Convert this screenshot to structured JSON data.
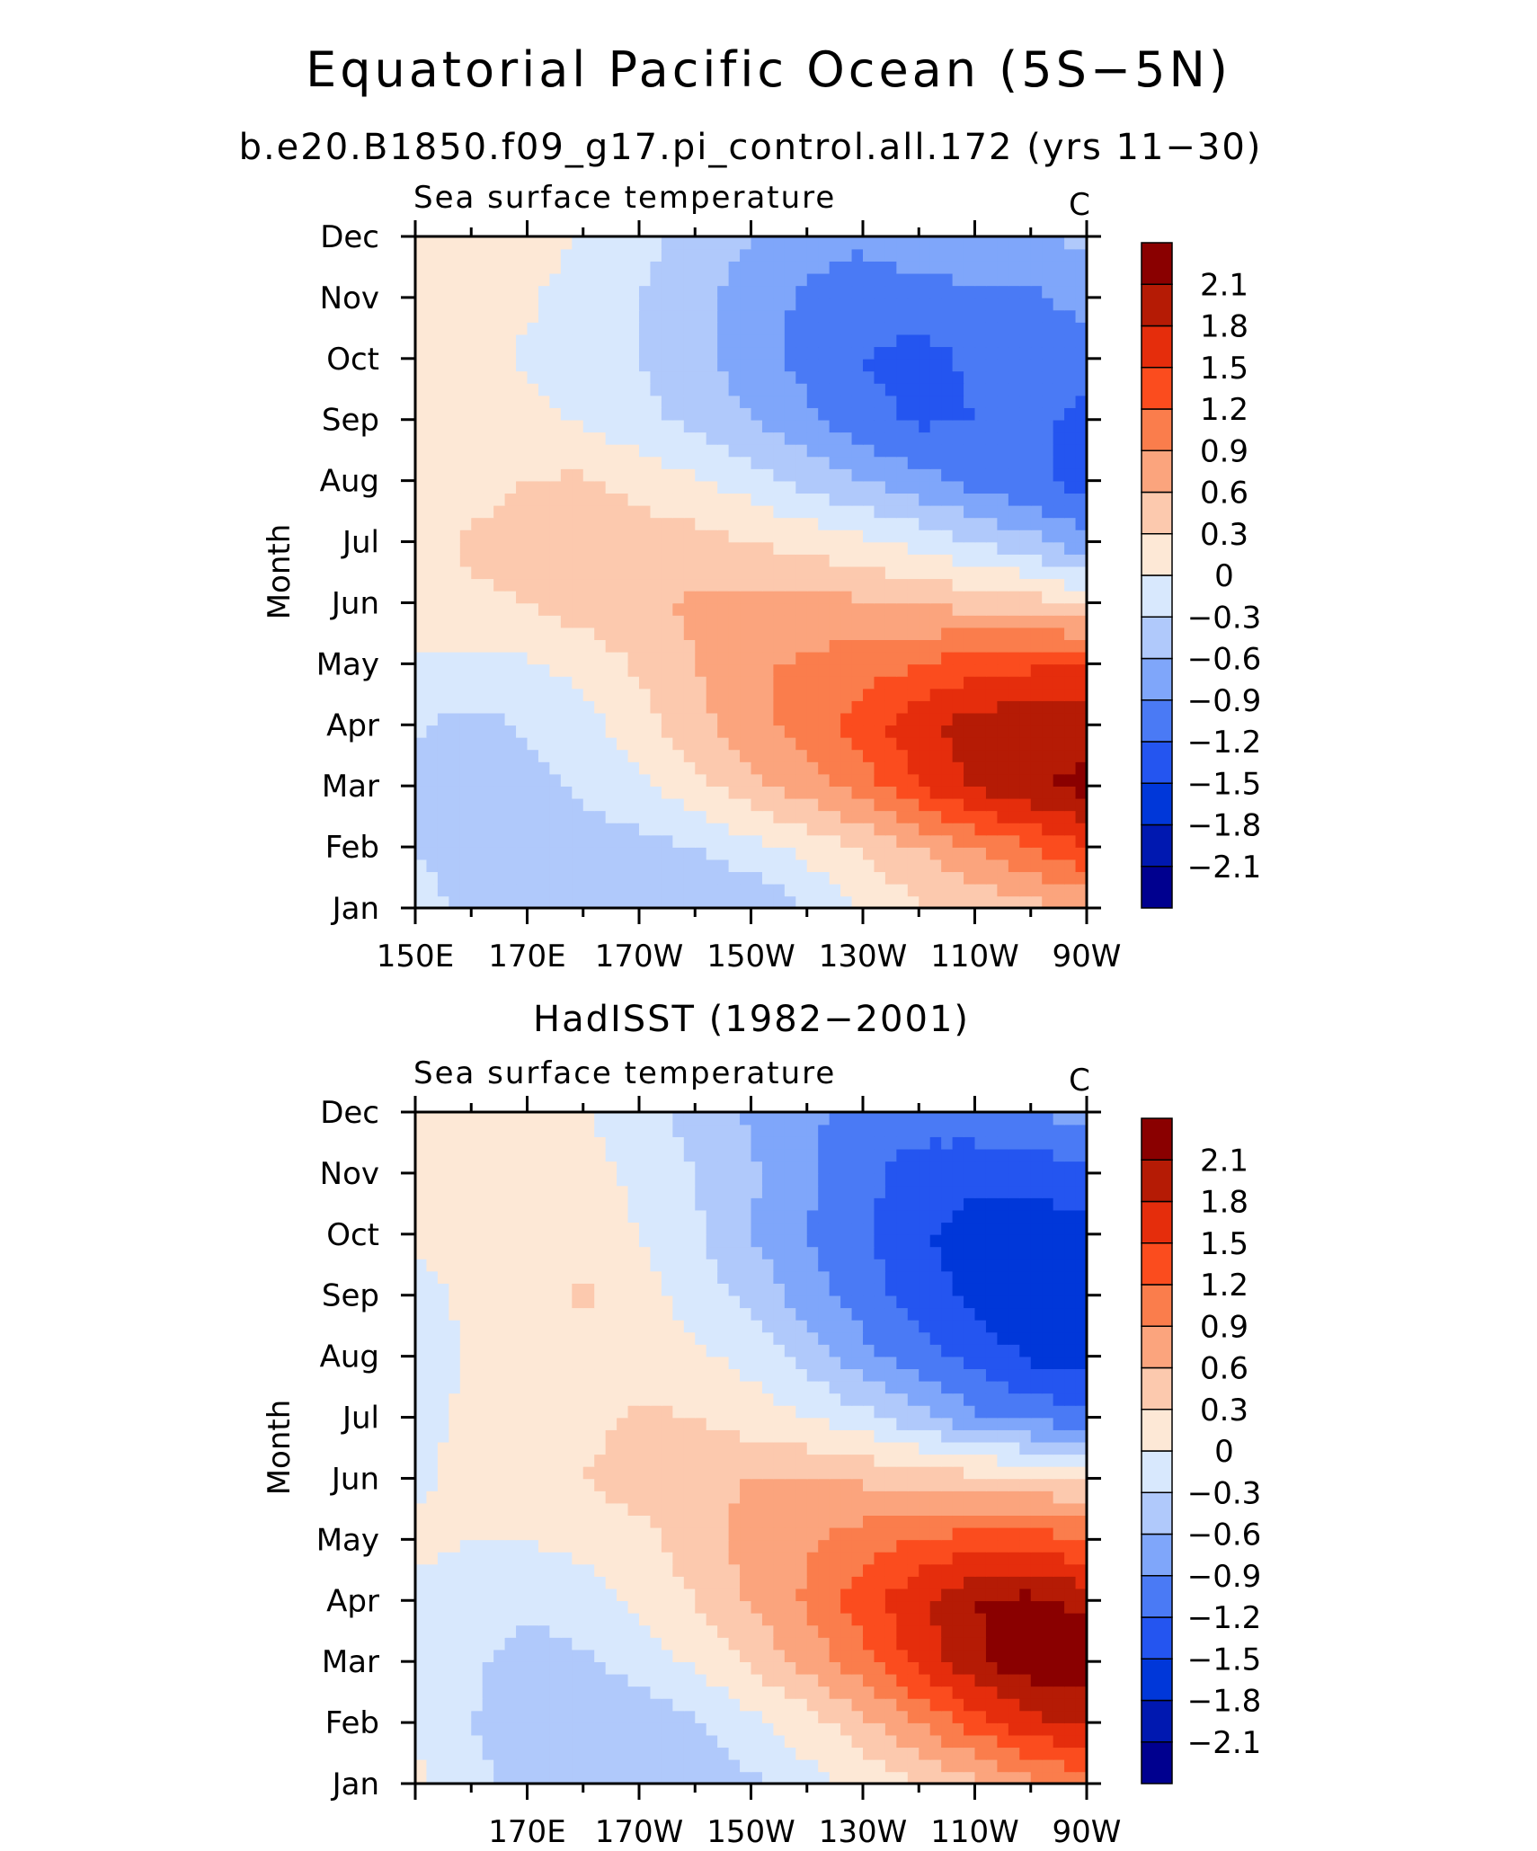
{
  "figure": {
    "title": "Equatorial Pacific Ocean (5S−5N)",
    "colors": {
      "levels": [
        "#00008f",
        "#0018b0",
        "#0037d9",
        "#2455f0",
        "#4a7af5",
        "#7fa6fa",
        "#b0c9fb",
        "#d8e8fd",
        "#fde8d6",
        "#fcc9ae",
        "#fba47d",
        "#fa7d4c",
        "#fb4c1e",
        "#e52d0c",
        "#b51b05",
        "#8a0000"
      ]
    }
  },
  "chart_data": [
    {
      "type": "heatmap",
      "panel_title": "b.e20.B1850.f09_g17.pi_control.all.172 (yrs 11−30)",
      "left_label": "Sea surface temperature",
      "right_label": "C",
      "ylabel": "Month",
      "xticks": [
        "150E",
        "170E",
        "170W",
        "150W",
        "130W",
        "110W",
        "90W"
      ],
      "yticks": [
        "Jan",
        "Feb",
        "Mar",
        "Apr",
        "May",
        "Jun",
        "Jul",
        "Aug",
        "Sep",
        "Oct",
        "Nov",
        "Dec"
      ],
      "colorbar_labels": [
        "2.1",
        "1.8",
        "1.5",
        "1.2",
        "0.9",
        "0.6",
        "0.3",
        "0",
        "−0.3",
        "−0.6",
        "−0.9",
        "−1.2",
        "−1.5",
        "−1.8",
        "−2.1"
      ],
      "x_longitude_range": [
        150,
        270
      ],
      "months": [
        1,
        2,
        3,
        4,
        5,
        6,
        7,
        8,
        9,
        10,
        11,
        12
      ],
      "longitudes": [
        150,
        160,
        170,
        180,
        190,
        200,
        210,
        220,
        230,
        240,
        250,
        260,
        270
      ],
      "values": [
        [
          -0.2,
          -0.35,
          -0.4,
          -0.45,
          -0.5,
          -0.6,
          -0.6,
          -0.3,
          0.0,
          0.25,
          0.4,
          0.5,
          0.6
        ],
        [
          -0.3,
          -0.45,
          -0.45,
          -0.45,
          -0.4,
          -0.3,
          -0.1,
          0.1,
          0.35,
          0.6,
          0.9,
          1.2,
          1.5
        ],
        [
          -0.4,
          -0.5,
          -0.4,
          -0.25,
          -0.05,
          0.2,
          0.5,
          0.75,
          1.05,
          1.5,
          1.85,
          2.05,
          2.2
        ],
        [
          -0.25,
          -0.4,
          -0.25,
          -0.1,
          0.15,
          0.5,
          0.8,
          1.05,
          1.35,
          1.7,
          1.95,
          2.0,
          1.95
        ],
        [
          -0.05,
          -0.1,
          -0.05,
          0.1,
          0.35,
          0.6,
          0.85,
          0.95,
          1.05,
          1.2,
          1.35,
          1.45,
          1.5
        ],
        [
          0.2,
          0.25,
          0.3,
          0.45,
          0.55,
          0.65,
          0.7,
          0.7,
          0.65,
          0.55,
          0.5,
          0.45,
          0.25
        ],
        [
          0.2,
          0.35,
          0.4,
          0.45,
          0.45,
          0.4,
          0.3,
          0.2,
          0.05,
          -0.1,
          -0.3,
          -0.5,
          -0.85
        ],
        [
          0.2,
          0.2,
          0.3,
          0.35,
          0.2,
          0.05,
          -0.15,
          -0.4,
          -0.6,
          -0.8,
          -1.0,
          -1.15,
          -1.3
        ],
        [
          0.15,
          0.2,
          0.1,
          -0.05,
          -0.2,
          -0.4,
          -0.6,
          -0.85,
          -1.1,
          -1.25,
          -1.2,
          -1.1,
          -1.3
        ],
        [
          0.1,
          0.15,
          -0.05,
          -0.2,
          -0.3,
          -0.5,
          -0.75,
          -1.0,
          -1.2,
          -1.3,
          -1.15,
          -1.05,
          -1.1
        ],
        [
          0.1,
          0.1,
          0.05,
          -0.15,
          -0.3,
          -0.5,
          -0.75,
          -0.95,
          -1.05,
          -1.05,
          -1.0,
          -0.95,
          -0.8
        ],
        [
          0.15,
          0.15,
          0.1,
          0.0,
          -0.2,
          -0.4,
          -0.6,
          -0.8,
          -0.85,
          -0.7,
          -0.6,
          -0.65,
          -0.5
        ]
      ]
    },
    {
      "type": "heatmap",
      "panel_title": "HadISST (1982−2001)",
      "left_label": "Sea surface temperature",
      "right_label": "C",
      "ylabel": "Month",
      "xticks": [
        "170E",
        "170W",
        "150W",
        "130W",
        "110W",
        "90W"
      ],
      "yticks": [
        "Jan",
        "Feb",
        "Mar",
        "Apr",
        "May",
        "Jun",
        "Jul",
        "Aug",
        "Sep",
        "Oct",
        "Nov",
        "Dec"
      ],
      "colorbar_labels": [
        "2.1",
        "1.8",
        "1.5",
        "1.2",
        "0.9",
        "0.6",
        "0.3",
        "0",
        "−0.3",
        "−0.6",
        "−0.9",
        "−1.2",
        "−1.5",
        "−1.8",
        "−2.1"
      ],
      "x_longitude_range": [
        150,
        270
      ],
      "months": [
        1,
        2,
        3,
        4,
        5,
        6,
        7,
        8,
        9,
        10,
        11,
        12
      ],
      "longitudes": [
        150,
        160,
        170,
        180,
        190,
        200,
        210,
        220,
        230,
        240,
        250,
        260,
        270
      ],
      "values": [
        [
          0.1,
          -0.2,
          -0.4,
          -0.5,
          -0.55,
          -0.5,
          -0.35,
          -0.1,
          0.1,
          0.3,
          0.5,
          0.8,
          1.0
        ],
        [
          -0.1,
          -0.3,
          -0.45,
          -0.5,
          -0.45,
          -0.35,
          -0.1,
          0.15,
          0.5,
          0.9,
          1.35,
          1.7,
          1.9
        ],
        [
          -0.1,
          -0.25,
          -0.4,
          -0.35,
          -0.2,
          0.05,
          0.35,
          0.7,
          1.1,
          1.6,
          2.05,
          2.3,
          2.3
        ],
        [
          -0.05,
          -0.15,
          -0.25,
          -0.15,
          0.05,
          0.3,
          0.65,
          0.95,
          1.35,
          1.75,
          2.1,
          2.2,
          2.0
        ],
        [
          0.05,
          0.0,
          0.0,
          0.1,
          0.2,
          0.45,
          0.7,
          0.85,
          1.05,
          1.2,
          1.35,
          1.35,
          1.2
        ],
        [
          -0.05,
          0.1,
          0.15,
          0.3,
          0.45,
          0.55,
          0.6,
          0.6,
          0.55,
          0.5,
          0.4,
          0.35,
          0.25
        ],
        [
          -0.1,
          0.05,
          0.15,
          0.2,
          0.35,
          0.3,
          0.15,
          0.0,
          -0.2,
          -0.5,
          -0.85,
          -1.0,
          -1.1
        ],
        [
          -0.15,
          0.05,
          0.1,
          0.15,
          0.15,
          0.05,
          -0.1,
          -0.4,
          -0.8,
          -1.05,
          -1.3,
          -1.55,
          -1.6
        ],
        [
          -0.1,
          0.05,
          0.2,
          0.35,
          0.1,
          -0.1,
          -0.4,
          -0.75,
          -1.05,
          -1.35,
          -1.6,
          -1.75,
          -1.8
        ],
        [
          0.05,
          0.1,
          0.15,
          0.1,
          0.0,
          -0.25,
          -0.6,
          -0.9,
          -1.15,
          -1.45,
          -1.65,
          -1.7,
          -1.6
        ],
        [
          0.1,
          0.1,
          0.15,
          0.1,
          -0.05,
          -0.3,
          -0.55,
          -0.85,
          -1.1,
          -1.35,
          -1.4,
          -1.35,
          -1.3
        ],
        [
          0.1,
          0.1,
          0.1,
          0.05,
          -0.2,
          -0.4,
          -0.65,
          -0.85,
          -1.0,
          -1.05,
          -1.0,
          -0.95,
          -0.75
        ]
      ]
    }
  ]
}
